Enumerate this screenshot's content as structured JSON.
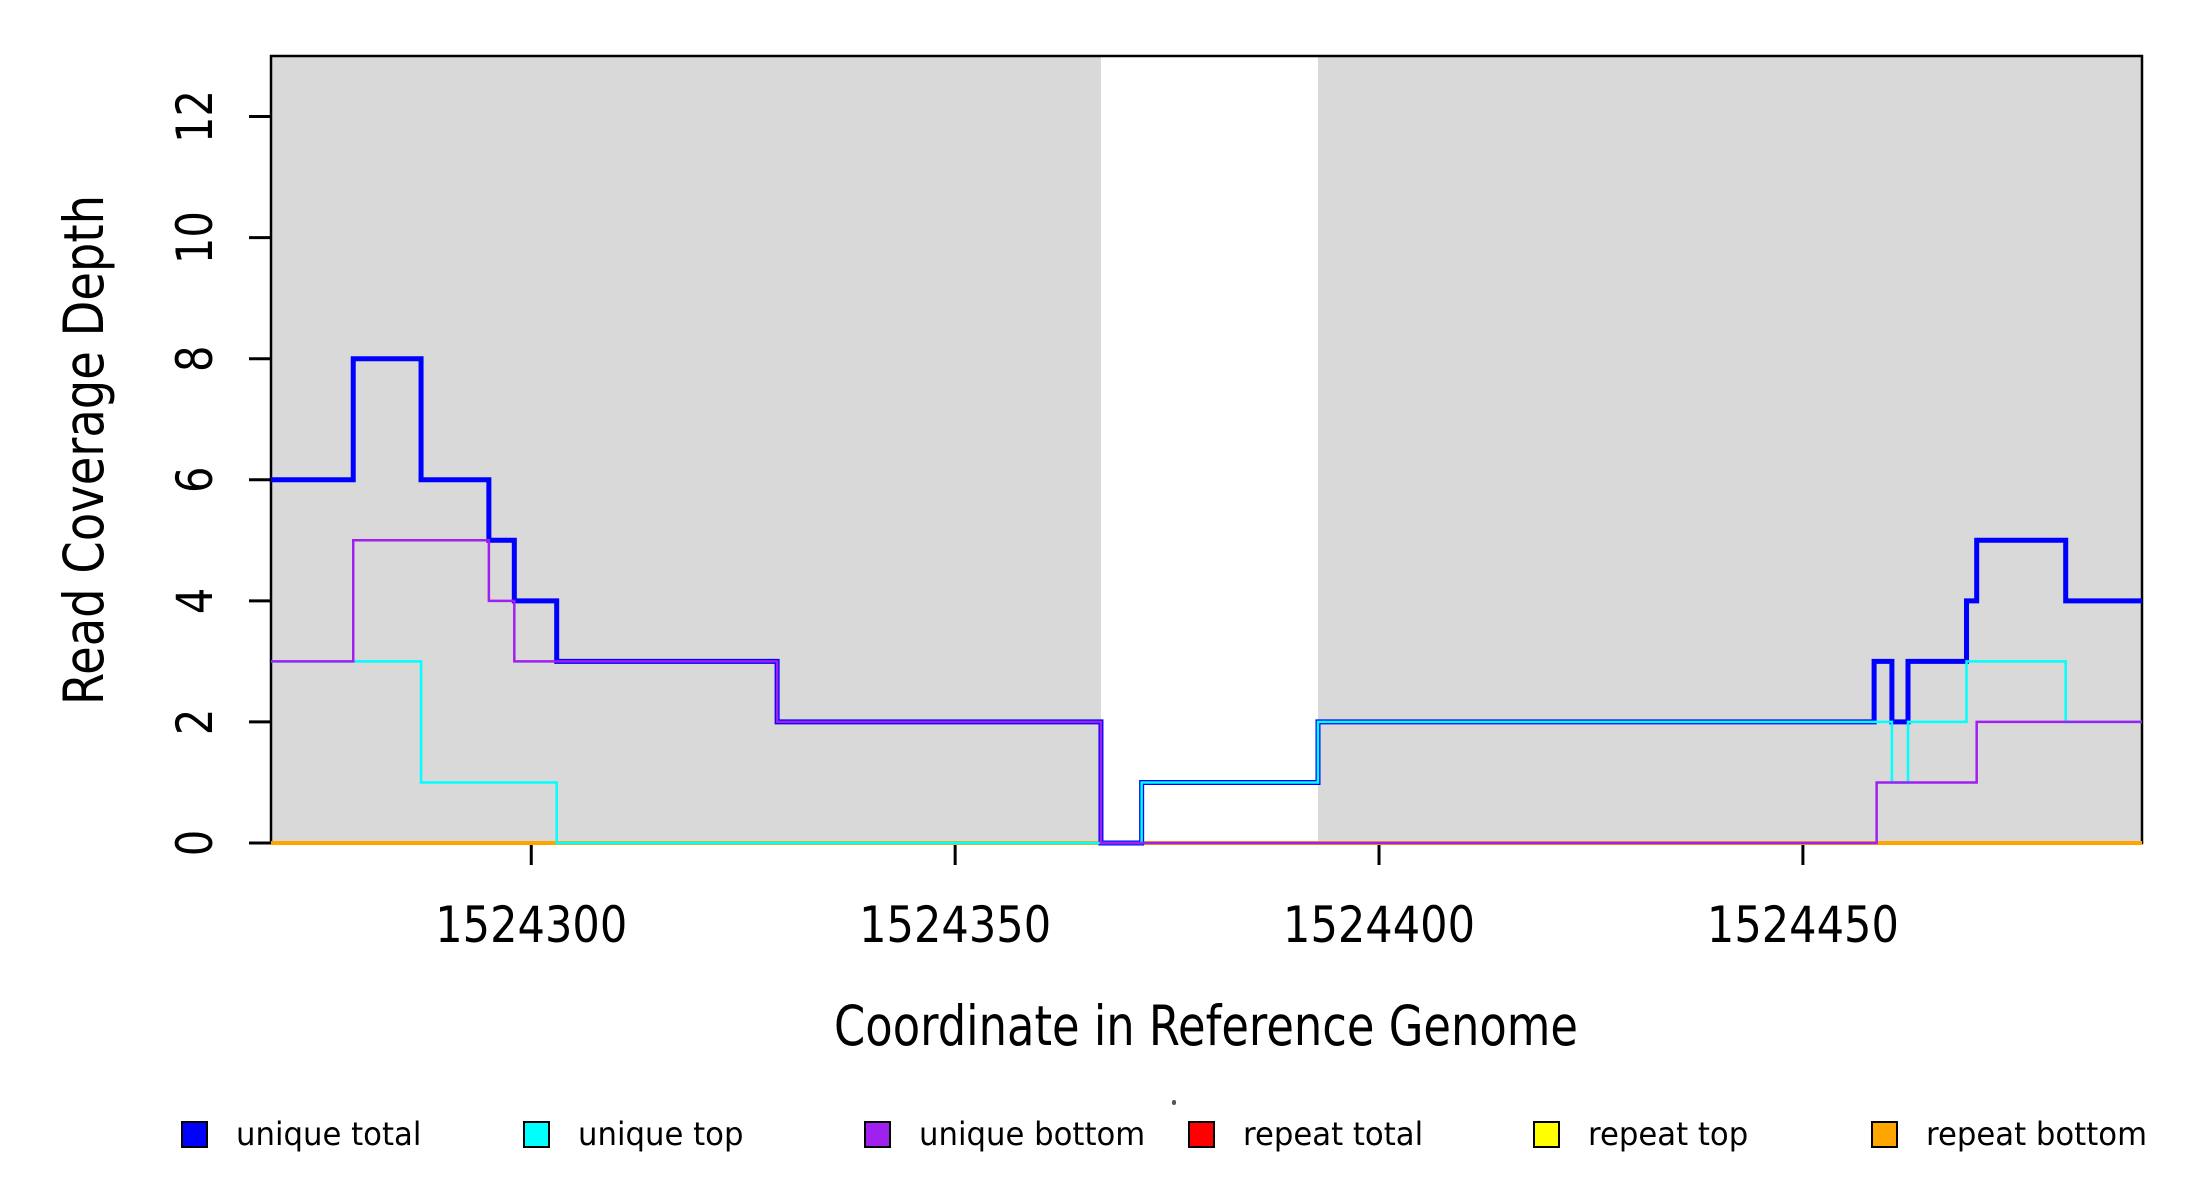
{
  "chart_data": {
    "type": "line",
    "subtype": "step-coverage",
    "title": "",
    "xlabel": "Coordinate in Reference Genome",
    "ylabel": "Read Coverage Depth",
    "xlim": [
      1524269.3,
      1524490.0
    ],
    "ylim": [
      0,
      13
    ],
    "x_ticks": [
      1524300,
      1524350,
      1524400,
      1524450
    ],
    "y_ticks": [
      0,
      2,
      4,
      6,
      8,
      10,
      12
    ],
    "grid": false,
    "background_color": "#FFFFFF",
    "plot_border_color": "#000000",
    "shaded_regions": [
      {
        "x0": 1524269.3,
        "x1": 1524367.2,
        "color": "#D9D9D9",
        "meaning": "aligned-region"
      },
      {
        "x0": 1524392.8,
        "x1": 1524490.0,
        "color": "#D9D9D9",
        "meaning": "aligned-region"
      }
    ],
    "series": [
      {
        "name": "repeat total",
        "color": "#FF0000",
        "width": 2.5,
        "steps": [
          [
            1524269.3,
            0
          ]
        ]
      },
      {
        "name": "repeat top",
        "color": "#FFFF00",
        "width": 2.5,
        "steps": [
          [
            1524269.3,
            0
          ]
        ]
      },
      {
        "name": "repeat bottom",
        "color": "#FFA500",
        "width": 4,
        "steps": [
          [
            1524269.3,
            0
          ]
        ]
      },
      {
        "name": "unique total",
        "color": "#0000FF",
        "width": 5,
        "steps": [
          [
            1524269.3,
            6
          ],
          [
            1524279,
            8
          ],
          [
            1524287,
            6
          ],
          [
            1524295,
            5
          ],
          [
            1524298,
            4
          ],
          [
            1524303,
            3
          ],
          [
            1524329,
            2
          ],
          [
            1524367.2,
            0
          ],
          [
            1524372,
            1
          ],
          [
            1524392.8,
            2
          ],
          [
            1524458.4,
            3
          ],
          [
            1524460.5,
            2
          ],
          [
            1524462.4,
            3
          ],
          [
            1524469.3,
            4
          ],
          [
            1524470.5,
            5
          ],
          [
            1524481,
            4
          ]
        ]
      },
      {
        "name": "unique top",
        "color": "#00FFFF",
        "width": 2.5,
        "steps": [
          [
            1524269.3,
            3
          ],
          [
            1524287,
            1
          ],
          [
            1524303,
            0
          ],
          [
            1524372,
            1
          ],
          [
            1524392.8,
            2
          ],
          [
            1524460.5,
            1
          ],
          [
            1524462.4,
            2
          ],
          [
            1524469.3,
            3
          ],
          [
            1524481,
            2
          ]
        ]
      },
      {
        "name": "unique bottom",
        "color": "#A020F0",
        "width": 2.5,
        "steps": [
          [
            1524269.3,
            3
          ],
          [
            1524279,
            5
          ],
          [
            1524295,
            4
          ],
          [
            1524298,
            3
          ],
          [
            1524329,
            2
          ],
          [
            1524367.2,
            0
          ],
          [
            1524458.7,
            1
          ],
          [
            1524470.5,
            2
          ]
        ]
      }
    ],
    "legend_position": "bottom",
    "legend": [
      {
        "label": "unique total",
        "color": "#0000FF"
      },
      {
        "label": "unique top",
        "color": "#00FFFF"
      },
      {
        "label": "unique bottom",
        "color": "#A020F0"
      },
      {
        "label": "repeat total",
        "color": "#FF0000"
      },
      {
        "label": "repeat top",
        "color": "#FFFF00"
      },
      {
        "label": "repeat bottom",
        "color": "#FFA500"
      }
    ]
  }
}
